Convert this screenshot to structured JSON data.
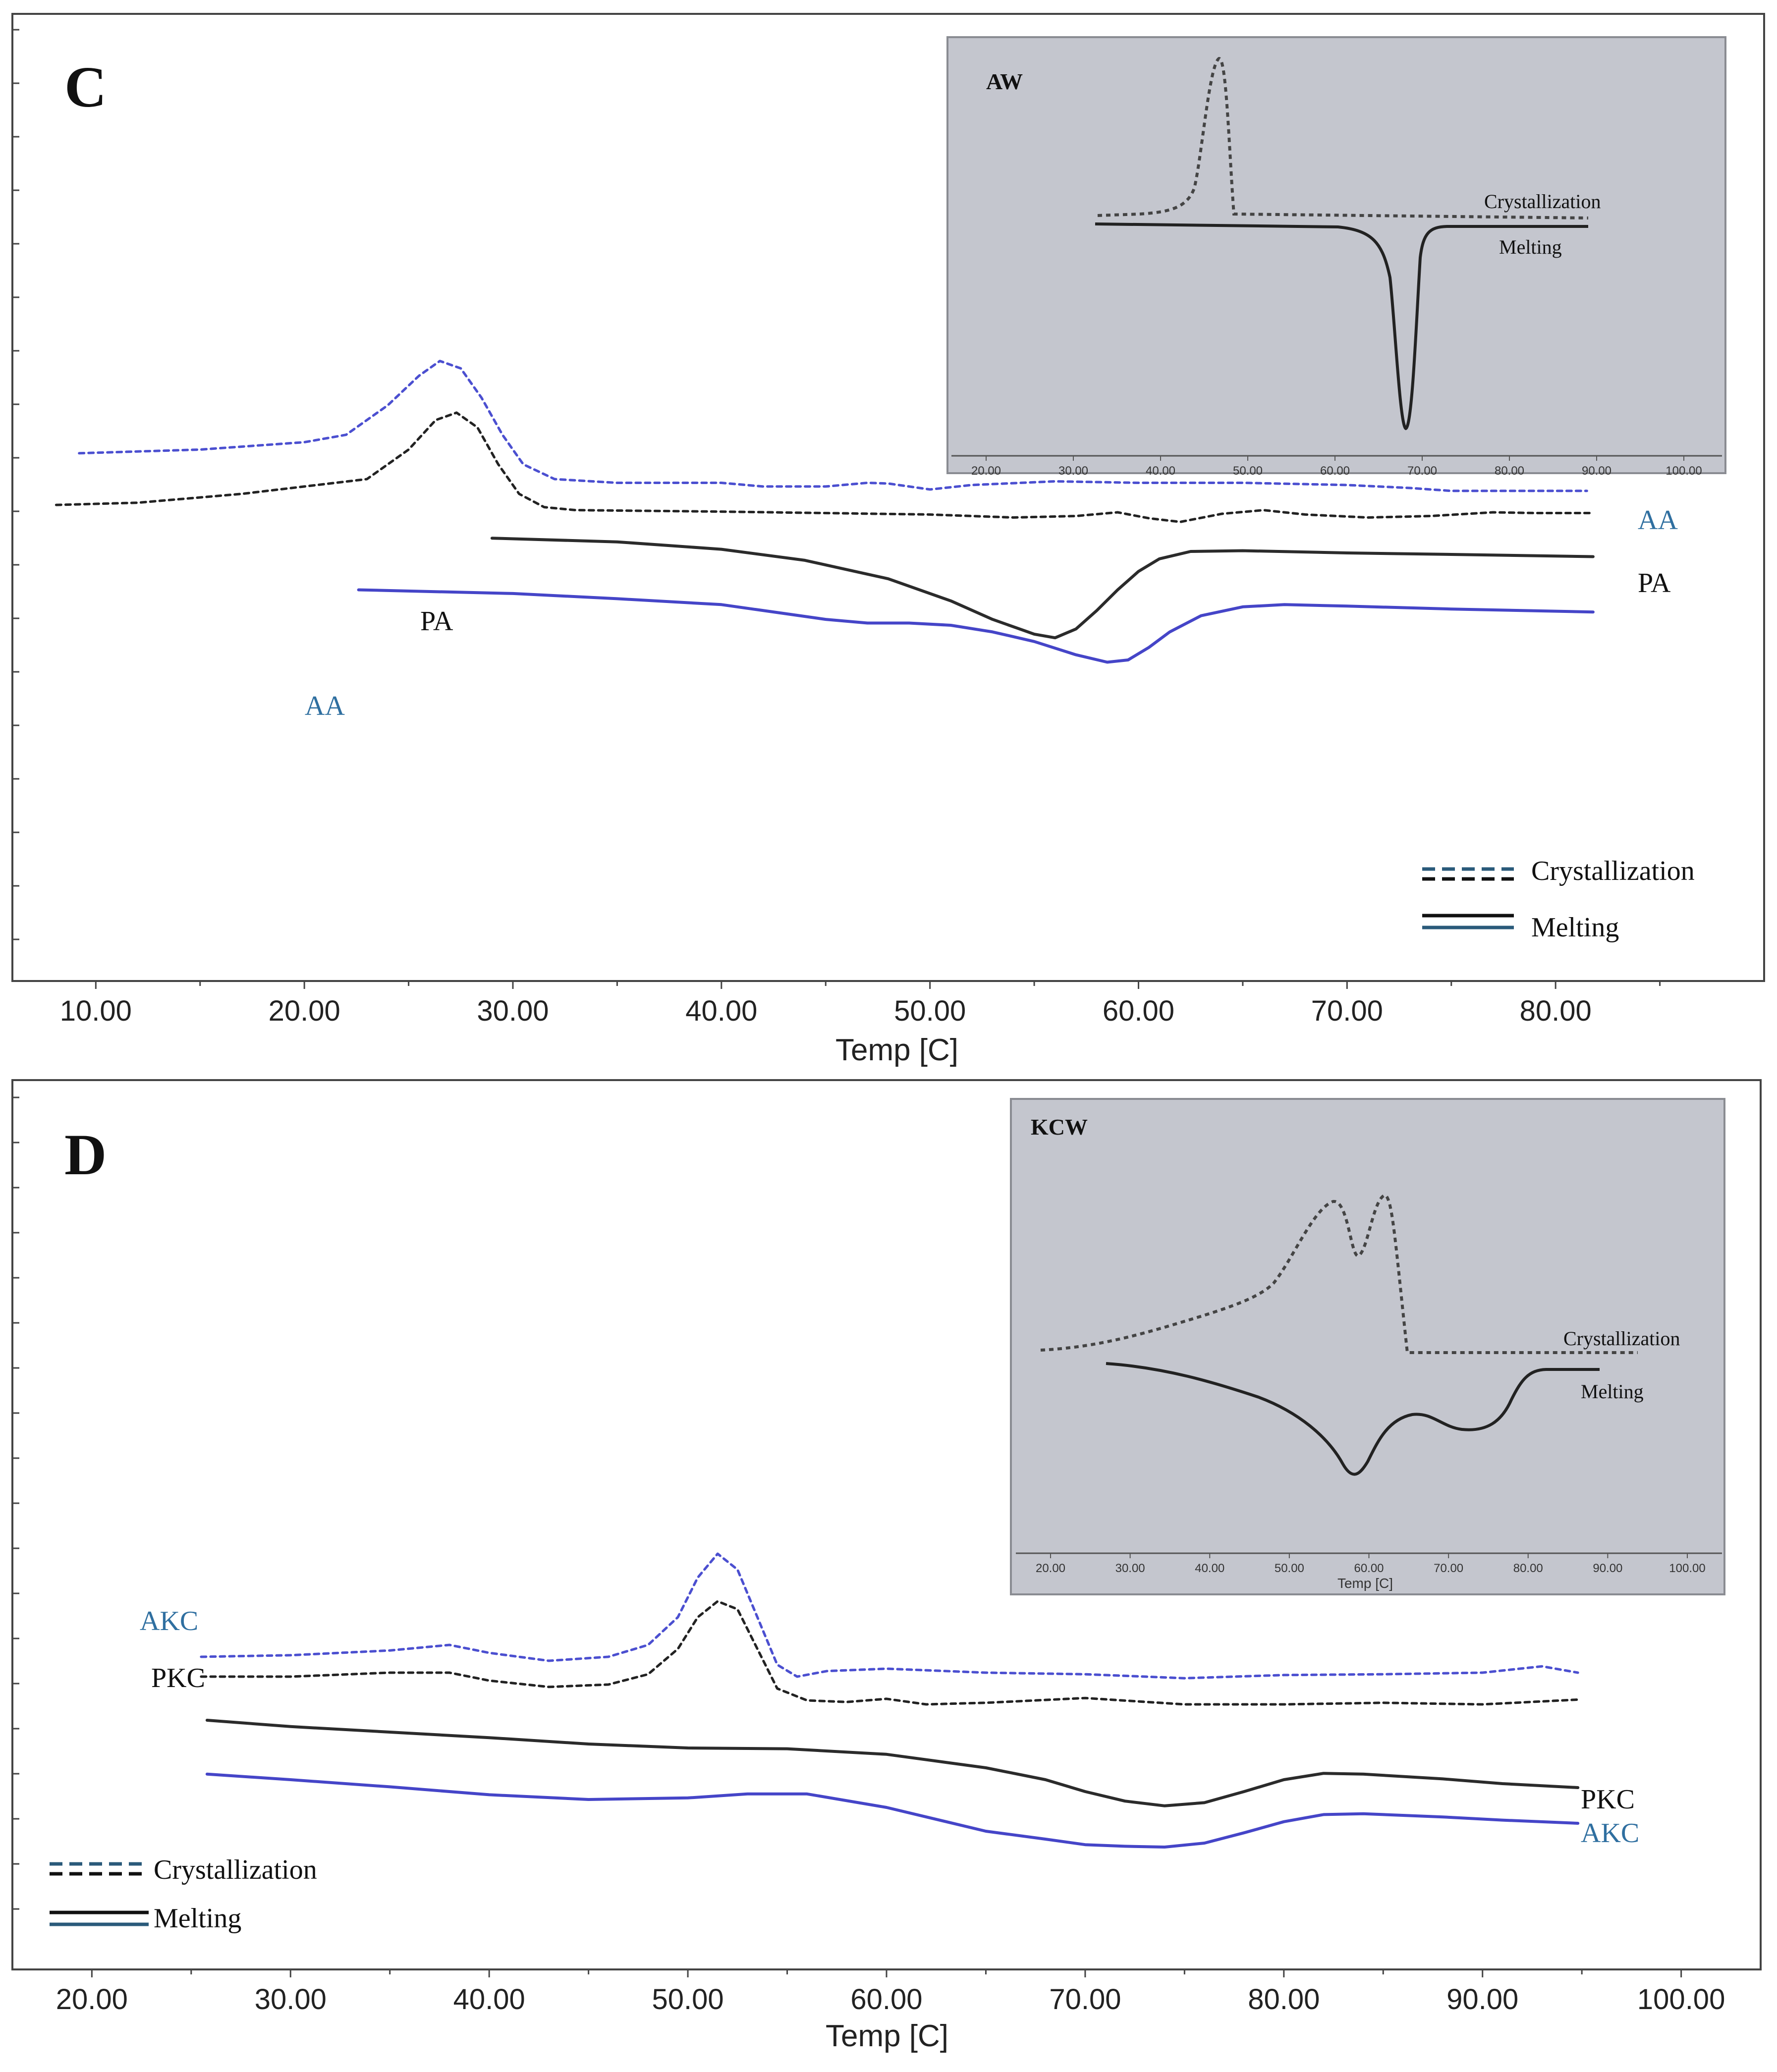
{
  "chart_data": [
    {
      "panel": "C",
      "type": "line",
      "xlabel": "Temp [C]",
      "xlim": [
        6.0,
        90.0
      ],
      "xticks": [
        "10.00",
        "20.00",
        "30.00",
        "40.00",
        "50.00",
        "60.00",
        "70.00",
        "80.00"
      ],
      "legend": {
        "placement": "bottom-right",
        "crystallization": "Crystallization",
        "melting": "Melting"
      },
      "series": [
        {
          "name": "AA",
          "kind": "crystallization",
          "color": "#4b4fd0",
          "x": [
            9.2,
            15,
            20,
            22,
            24,
            25.5,
            26.5,
            27.5,
            28.5,
            29.5,
            30.5,
            32,
            35,
            40,
            42,
            45,
            47,
            48,
            50,
            52,
            56,
            60,
            65,
            70,
            73,
            75,
            77,
            81.5
          ],
          "y": [
            0.735,
            0.74,
            0.75,
            0.76,
            0.8,
            0.84,
            0.86,
            0.85,
            0.81,
            0.76,
            0.72,
            0.7,
            0.695,
            0.695,
            0.69,
            0.69,
            0.695,
            0.694,
            0.686,
            0.692,
            0.697,
            0.695,
            0.695,
            0.692,
            0.688,
            0.684,
            0.684,
            0.684
          ]
        },
        {
          "name": "PA",
          "kind": "crystallization",
          "color": "#222222",
          "x": [
            8.1,
            12,
            17,
            20,
            23,
            25,
            26.3,
            27.3,
            28.3,
            29.3,
            30.3,
            31.5,
            33,
            40,
            50,
            54,
            57,
            59,
            60.5,
            62,
            64,
            66,
            68,
            71,
            74,
            77,
            79,
            81.8
          ],
          "y": [
            0.665,
            0.668,
            0.68,
            0.69,
            0.7,
            0.74,
            0.78,
            0.79,
            0.77,
            0.72,
            0.68,
            0.662,
            0.658,
            0.656,
            0.652,
            0.648,
            0.65,
            0.655,
            0.647,
            0.642,
            0.653,
            0.658,
            0.652,
            0.648,
            0.65,
            0.655,
            0.654,
            0.654
          ]
        },
        {
          "name": "PA",
          "kind": "melting",
          "color": "#2b2b2b",
          "x": [
            29,
            35,
            40,
            44,
            48,
            51,
            53,
            55,
            56,
            57,
            58,
            59,
            60,
            61,
            62.5,
            65,
            70,
            75,
            81.8
          ],
          "y": [
            0.62,
            0.615,
            0.605,
            0.59,
            0.565,
            0.535,
            0.51,
            0.49,
            0.485,
            0.497,
            0.522,
            0.55,
            0.575,
            0.592,
            0.602,
            0.603,
            0.6,
            0.598,
            0.595
          ]
        },
        {
          "name": "AA",
          "kind": "melting",
          "color": "#4545c8",
          "x": [
            22.6,
            30,
            35,
            40,
            45,
            47,
            49,
            51,
            53,
            55,
            57,
            58.5,
            59.5,
            60.5,
            61.5,
            63,
            65,
            67,
            70,
            75,
            81.8
          ],
          "y": [
            0.55,
            0.545,
            0.538,
            0.53,
            0.51,
            0.505,
            0.505,
            0.502,
            0.493,
            0.48,
            0.462,
            0.452,
            0.455,
            0.472,
            0.493,
            0.515,
            0.527,
            0.53,
            0.528,
            0.524,
            0.52
          ]
        }
      ],
      "series_labels": {
        "aa_cryst": "AA",
        "pa_cryst": "PA",
        "pa_melt": "PA",
        "aa_melt": "AA"
      },
      "inset": {
        "title": "AW",
        "xticks": [
          "20.00",
          "30.00",
          "40.00",
          "50.00",
          "60.00",
          "70.00",
          "80.00",
          "90.00",
          "100.00"
        ],
        "crystallization_label": "Crystallization",
        "melting_label": "Melting"
      }
    },
    {
      "panel": "D",
      "type": "line",
      "xlabel": "Temp [C]",
      "xlim": [
        16.0,
        104.0
      ],
      "xticks": [
        "20.00",
        "30.00",
        "40.00",
        "50.00",
        "60.00",
        "70.00",
        "80.00",
        "90.00",
        "100.00"
      ],
      "legend": {
        "placement": "bottom-left",
        "crystallization": "Crystallization",
        "melting": "Melting"
      },
      "series": [
        {
          "name": "AKC",
          "kind": "crystallization",
          "color": "#4b4fd0",
          "x": [
            25.5,
            30,
            35,
            38,
            40,
            43,
            46,
            48,
            49.5,
            50.5,
            51.5,
            52.5,
            53.5,
            54.5,
            55.5,
            57,
            60,
            65,
            70,
            75,
            80,
            85,
            90,
            93,
            94.8
          ],
          "y": [
            0.41,
            0.412,
            0.418,
            0.425,
            0.415,
            0.405,
            0.41,
            0.425,
            0.46,
            0.51,
            0.54,
            0.52,
            0.46,
            0.4,
            0.385,
            0.392,
            0.395,
            0.39,
            0.388,
            0.383,
            0.387,
            0.388,
            0.39,
            0.398,
            0.39
          ]
        },
        {
          "name": "PKC",
          "kind": "crystallization",
          "color": "#222222",
          "x": [
            25.5,
            30,
            35,
            38,
            40,
            43,
            46,
            48,
            49.5,
            50.5,
            51.5,
            52.5,
            53.5,
            54.5,
            56,
            58,
            60,
            62,
            65,
            70,
            75,
            80,
            85,
            90,
            94.8
          ],
          "y": [
            0.385,
            0.385,
            0.39,
            0.39,
            0.38,
            0.372,
            0.375,
            0.388,
            0.42,
            0.46,
            0.48,
            0.47,
            0.42,
            0.37,
            0.355,
            0.353,
            0.357,
            0.35,
            0.352,
            0.358,
            0.35,
            0.35,
            0.352,
            0.35,
            0.356
          ]
        },
        {
          "name": "PKC",
          "kind": "melting",
          "color": "#2b2b2b",
          "x": [
            25.8,
            30,
            35,
            40,
            45,
            50,
            55,
            60,
            65,
            68,
            70,
            72,
            74,
            76,
            78,
            80,
            82,
            84,
            88,
            91,
            94.8
          ],
          "y": [
            0.33,
            0.322,
            0.315,
            0.308,
            0.3,
            0.295,
            0.294,
            0.287,
            0.27,
            0.255,
            0.24,
            0.228,
            0.222,
            0.226,
            0.24,
            0.255,
            0.263,
            0.262,
            0.256,
            0.25,
            0.245
          ]
        },
        {
          "name": "AKC",
          "kind": "melting",
          "color": "#4545c8",
          "x": [
            25.8,
            30,
            35,
            40,
            45,
            50,
            53,
            56,
            60,
            65,
            68,
            70,
            72,
            74,
            76,
            78,
            80,
            82,
            84,
            88,
            91,
            94.8
          ],
          "y": [
            0.262,
            0.255,
            0.246,
            0.236,
            0.23,
            0.232,
            0.237,
            0.237,
            0.22,
            0.19,
            0.18,
            0.173,
            0.171,
            0.17,
            0.175,
            0.188,
            0.202,
            0.211,
            0.212,
            0.208,
            0.204,
            0.2
          ]
        }
      ],
      "series_labels": {
        "akc_cryst": "AKC",
        "pkc_cryst": "PKC",
        "pkc_melt": "PKC",
        "akc_melt": "AKC"
      },
      "inset": {
        "title": "KCW",
        "xticks": [
          "20.00",
          "30.00",
          "40.00",
          "50.00",
          "60.00",
          "70.00",
          "80.00",
          "90.00",
          "100.00"
        ],
        "xlabel": "Temp [C]",
        "crystallization_label": "Crystallization",
        "melting_label": "Melting"
      }
    }
  ]
}
